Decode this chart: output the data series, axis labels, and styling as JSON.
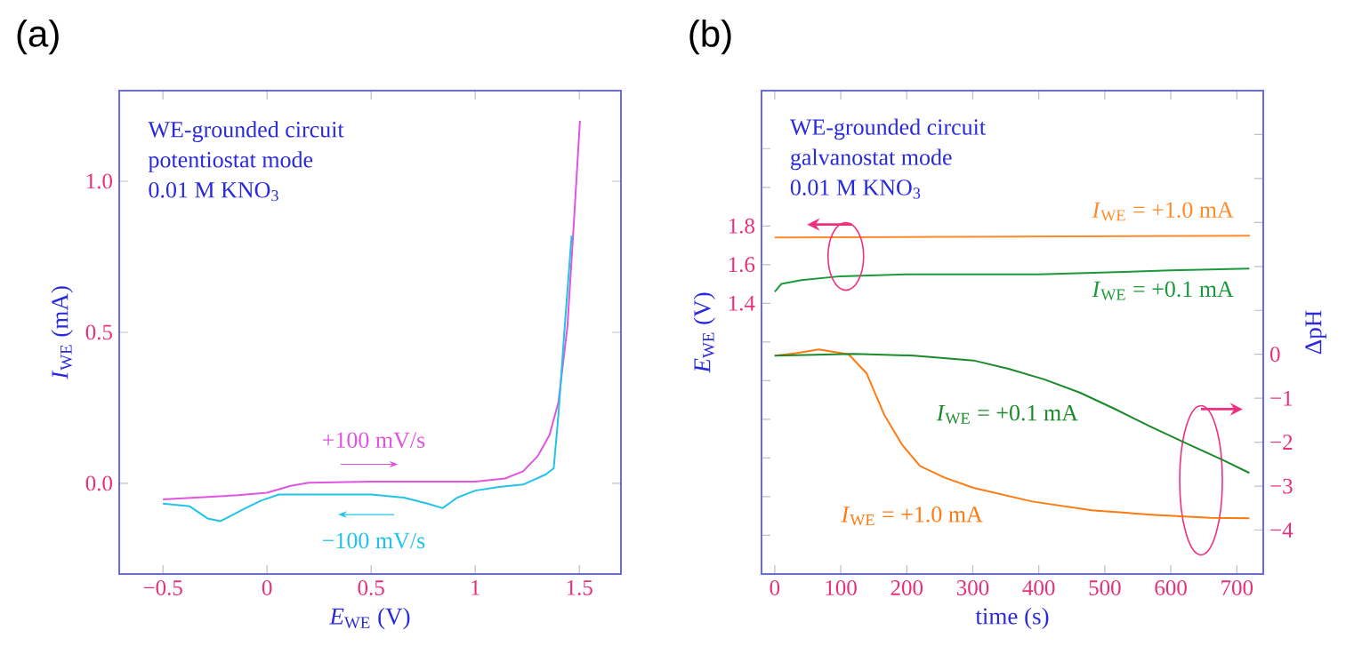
{
  "chart_data": [
    {
      "type": "line",
      "title": "(a)",
      "xlabel": "*E*$_{WE}$ (V)",
      "ylabel": "*I*$_{WE}$ (mA)",
      "annotations": [
        "WE-grounded circuit",
        "potentiostat mode",
        "0.01 M KNO$_{3}$"
      ],
      "xlim": [
        -0.71,
        1.7
      ],
      "ylim": [
        -0.3,
        1.3
      ],
      "xticks": [
        {
          "value": -0.5,
          "label": "−0.5"
        },
        0,
        0.5,
        1,
        1.5
      ],
      "yticks": [
        {
          "value": 0,
          "label": "0.0"
        },
        0.5,
        {
          "value": 1,
          "label": "1.0"
        }
      ],
      "series": [
        {
          "name": "+100 mV/s",
          "color": "#e055e0",
          "x": [
            -0.5,
            -0.14,
            0,
            0.114,
            0.2,
            0.5,
            1.0,
            1.143,
            1.23,
            1.3,
            1.357,
            1.4,
            1.443,
            1.47,
            1.503
          ],
          "values": [
            -0.053,
            -0.039,
            -0.031,
            -0.008,
            0.002,
            0.006,
            0.006,
            0.016,
            0.04,
            0.09,
            0.16,
            0.27,
            0.52,
            0.82,
            1.2
          ]
        },
        {
          "name": "−100 mV/s",
          "color": "#20c4e8",
          "x": [
            1.463,
            1.43,
            1.4,
            1.377,
            1.34,
            1.23,
            1.114,
            1.0,
            0.914,
            0.843,
            0.771,
            0.657,
            0.5,
            0.286,
            0.057,
            -0.029,
            -0.114,
            -0.223,
            -0.286,
            -0.371,
            -0.5
          ],
          "values": [
            0.82,
            0.52,
            0.23,
            0.05,
            0.03,
            -0.004,
            -0.012,
            -0.024,
            -0.047,
            -0.082,
            -0.067,
            -0.047,
            -0.037,
            -0.037,
            -0.037,
            -0.057,
            -0.086,
            -0.125,
            -0.116,
            -0.076,
            -0.067
          ]
        }
      ]
    },
    {
      "type": "line",
      "title": "(b)",
      "xlabel": "time (s)",
      "ylabel": "*E*$_{WE}$ (V)",
      "y2label": "ΔpH",
      "annotations": [
        "WE-grounded circuit",
        "galvanostat mode",
        "0.01 M KNO$_{3}$"
      ],
      "xlim": [
        -20,
        740
      ],
      "ylim": [
        0,
        2.5
      ],
      "y2lim": [
        -5,
        6
      ],
      "xticks": [
        0,
        100,
        200,
        300,
        400,
        500,
        600,
        700
      ],
      "yticks": [
        {
          "value": 0.2,
          "label": null
        },
        {
          "value": 0.4,
          "label": null
        },
        {
          "value": 0.6,
          "label": null
        },
        {
          "value": 0.8,
          "label": null
        },
        {
          "value": 1.0,
          "label": null
        },
        {
          "value": 1.2,
          "label": null
        },
        1.4,
        1.6,
        1.8,
        {
          "value": 2.0,
          "label": null
        },
        {
          "value": 2.2,
          "label": null
        }
      ],
      "y2ticks": [
        {
          "value": -4,
          "label": "−4"
        },
        {
          "value": -3,
          "label": "−3"
        },
        {
          "value": -2,
          "label": "−2"
        },
        {
          "value": -1,
          "label": "−1"
        },
        0,
        {
          "value": 1,
          "label": null
        },
        {
          "value": 2,
          "label": null
        },
        {
          "value": 3,
          "label": null
        },
        {
          "value": 4,
          "label": null
        },
        {
          "value": 5,
          "label": null
        }
      ],
      "series": [
        {
          "name": "*I*$_{WE}$ = +1.0 mA",
          "color": "#ff8a2a",
          "x": [
            0,
            720
          ],
          "values": [
            1.74,
            1.75
          ]
        },
        {
          "name": "*I*$_{WE}$ = +0.1 mA",
          "color": "#1a9a3a",
          "x": [
            0,
            10,
            40,
            100,
            200,
            400,
            600,
            719
          ],
          "values": [
            1.46,
            1.5,
            1.52,
            1.54,
            1.55,
            1.55,
            1.57,
            1.58
          ]
        },
        {
          "name": "*I*$_{WE}$ = +1.0 mA",
          "color": "#ff7a10",
          "axis": "y2",
          "x": [
            0,
            30,
            67,
            112,
            139,
            166,
            193,
            220,
            256,
            301,
            390,
            480,
            570,
            660,
            719
          ],
          "values": [
            -0.03,
            0.02,
            0.11,
            0,
            -0.43,
            -1.38,
            -2.06,
            -2.54,
            -2.8,
            -3.04,
            -3.35,
            -3.55,
            -3.65,
            -3.72,
            -3.73
          ]
        },
        {
          "name": "*I*$_{WE}$ = +0.1 mA",
          "color": "#1a8a2a",
          "axis": "y2",
          "x": [
            0,
            121,
            211,
            301,
            354,
            408,
            462,
            516,
            570,
            624,
            678,
            719
          ],
          "values": [
            -0.03,
            0.01,
            -0.03,
            -0.14,
            -0.33,
            -0.57,
            -0.87,
            -1.25,
            -1.65,
            -2.03,
            -2.4,
            -2.7
          ]
        }
      ]
    }
  ]
}
